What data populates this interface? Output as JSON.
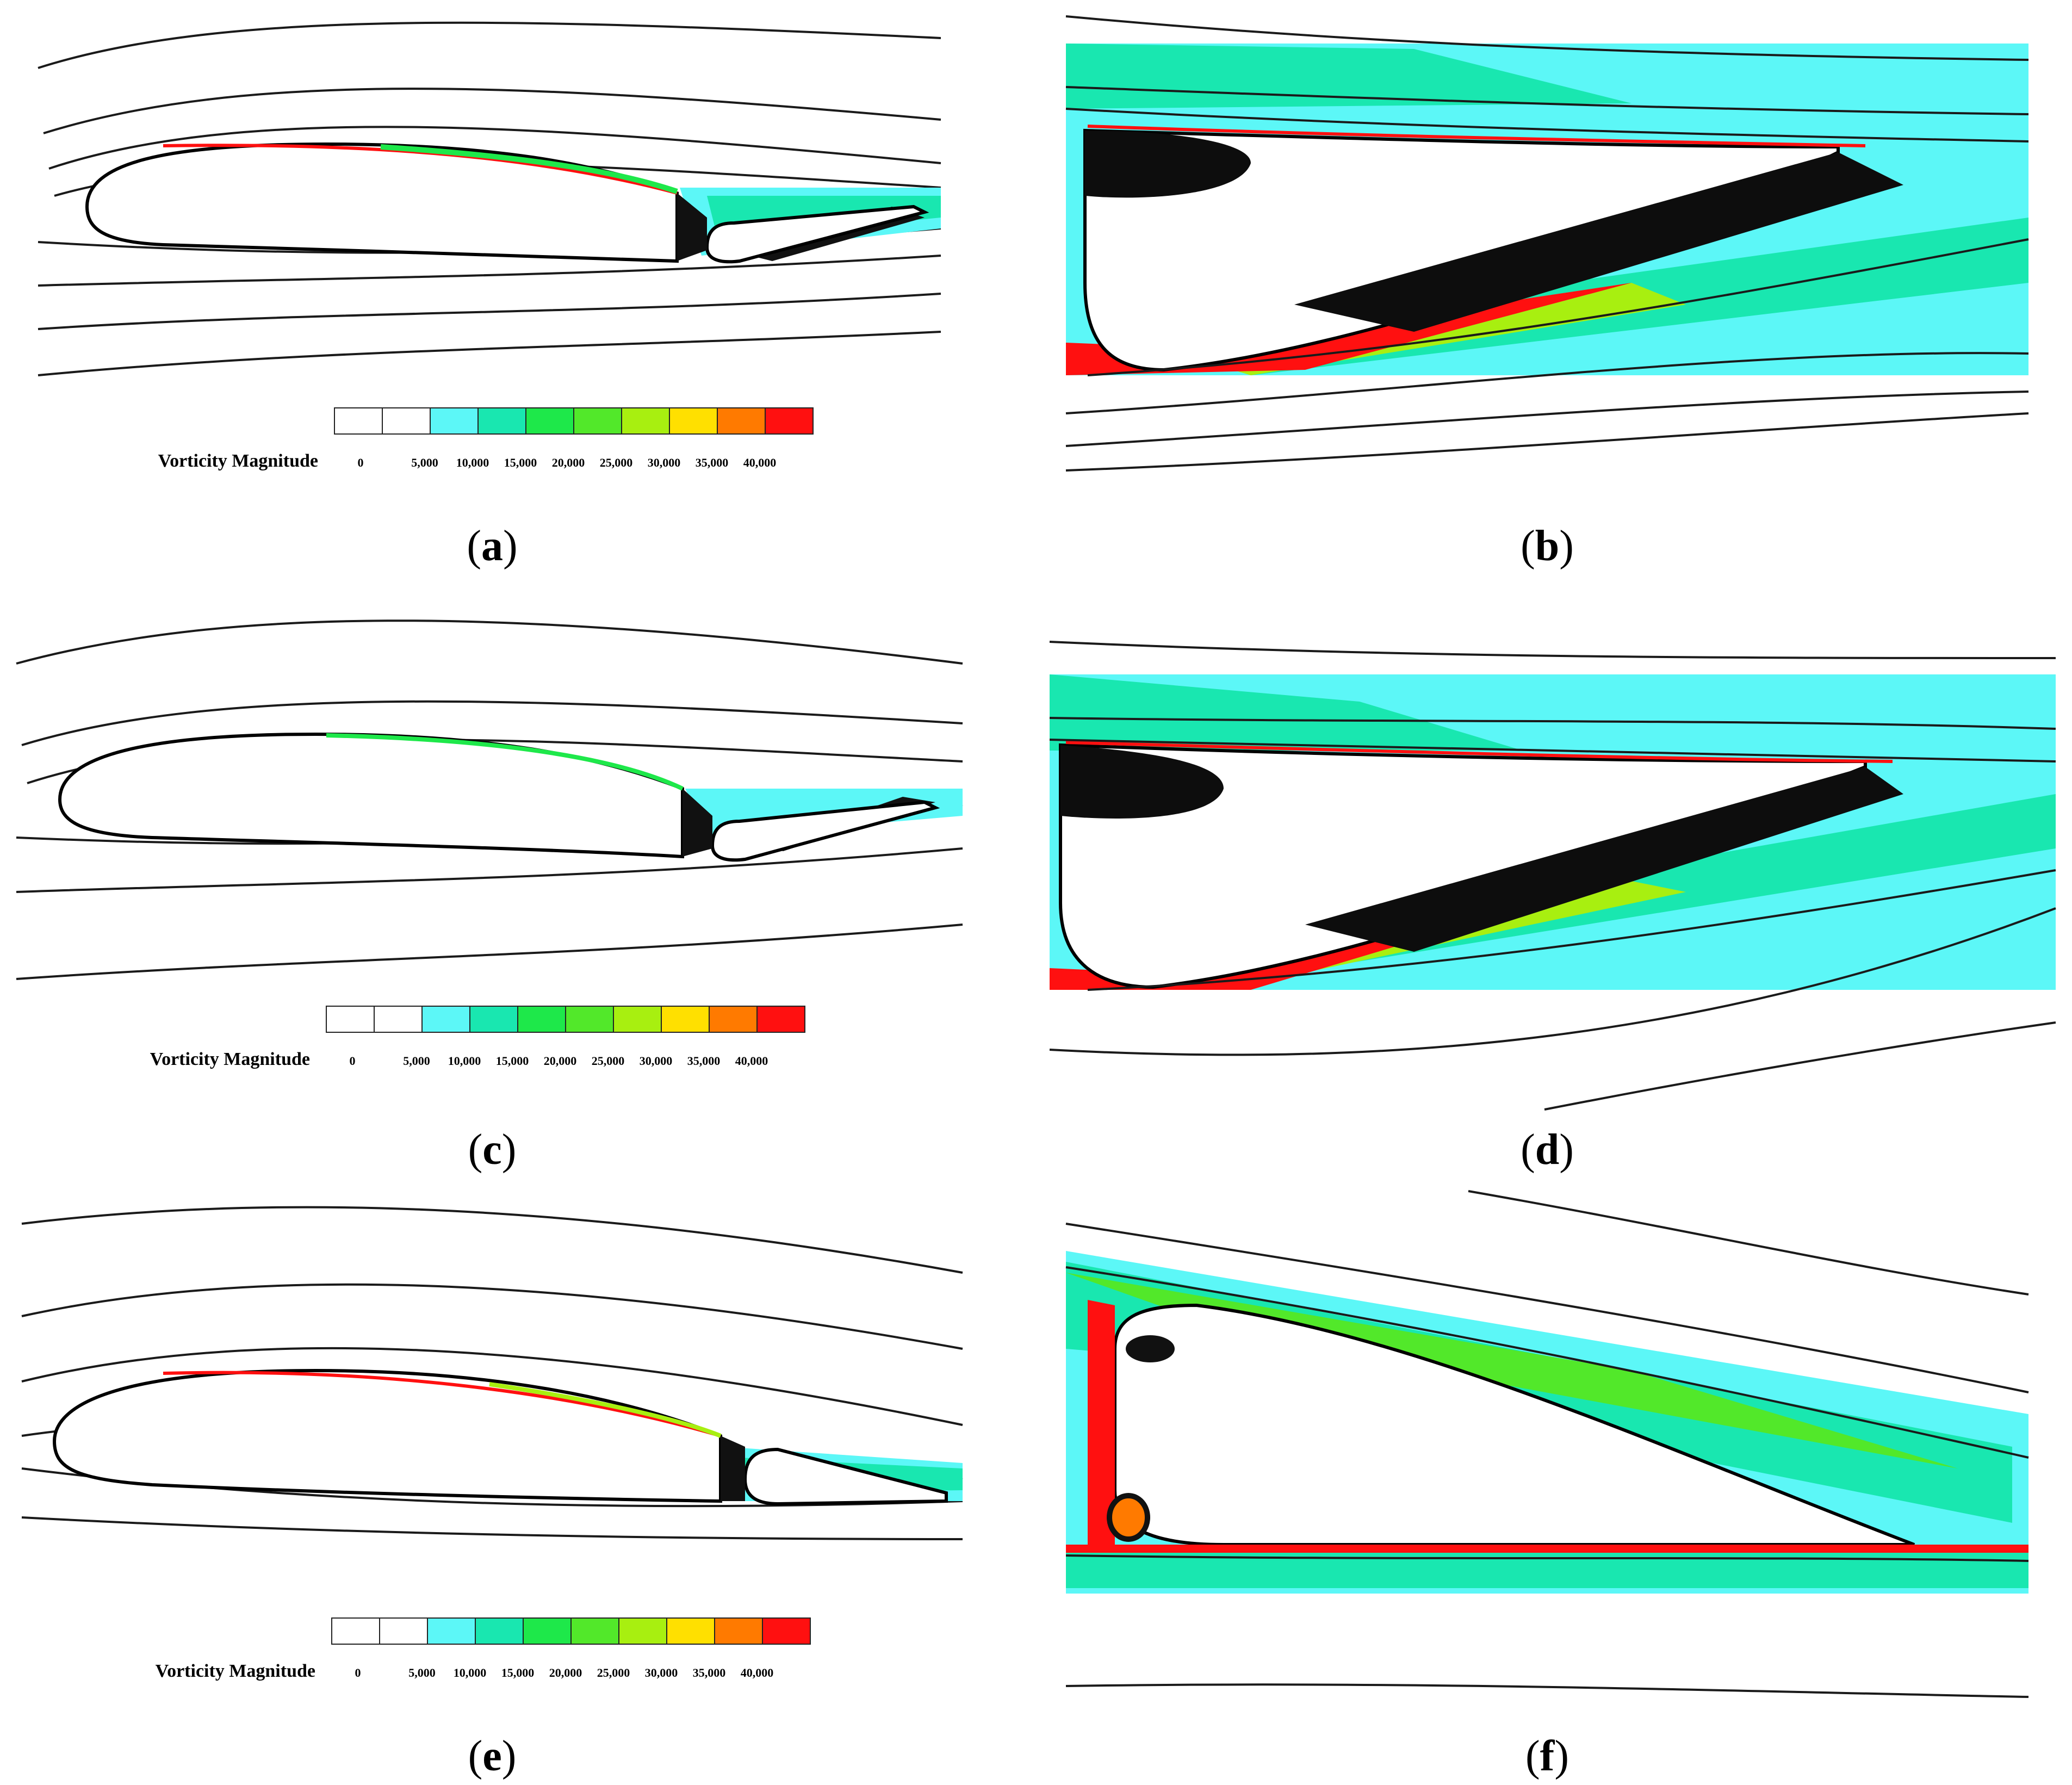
{
  "legend": {
    "title": "Vorticity Magnitude",
    "ticks": [
      "0",
      "5,000",
      "10,000",
      "15,000",
      "20,000",
      "25,000",
      "30,000",
      "35,000",
      "40,000"
    ],
    "colors": [
      "#ffffff",
      "#ffffff",
      "#5cf7f7",
      "#19e7b0",
      "#1ee84a",
      "#52e82a",
      "#a8ef10",
      "#ffe000",
      "#ff7a00",
      "#ff1010"
    ]
  },
  "panels": [
    {
      "id": "a",
      "label_open": "(",
      "label_letter": "a",
      "label_close": ")"
    },
    {
      "id": "b",
      "label_open": "(",
      "label_letter": "b",
      "label_close": ")"
    },
    {
      "id": "c",
      "label_open": "(",
      "label_letter": "c",
      "label_close": ")"
    },
    {
      "id": "d",
      "label_open": "(",
      "label_letter": "d",
      "label_close": ")"
    },
    {
      "id": "e",
      "label_open": "(",
      "label_letter": "e",
      "label_close": ")"
    },
    {
      "id": "f",
      "label_open": "(",
      "label_letter": "f",
      "label_close": ")"
    }
  ],
  "colors": {
    "streamline": "#1a1a1a",
    "low": "#5cf7f7",
    "mid": "#19e7b0",
    "high": "#ff1010"
  }
}
